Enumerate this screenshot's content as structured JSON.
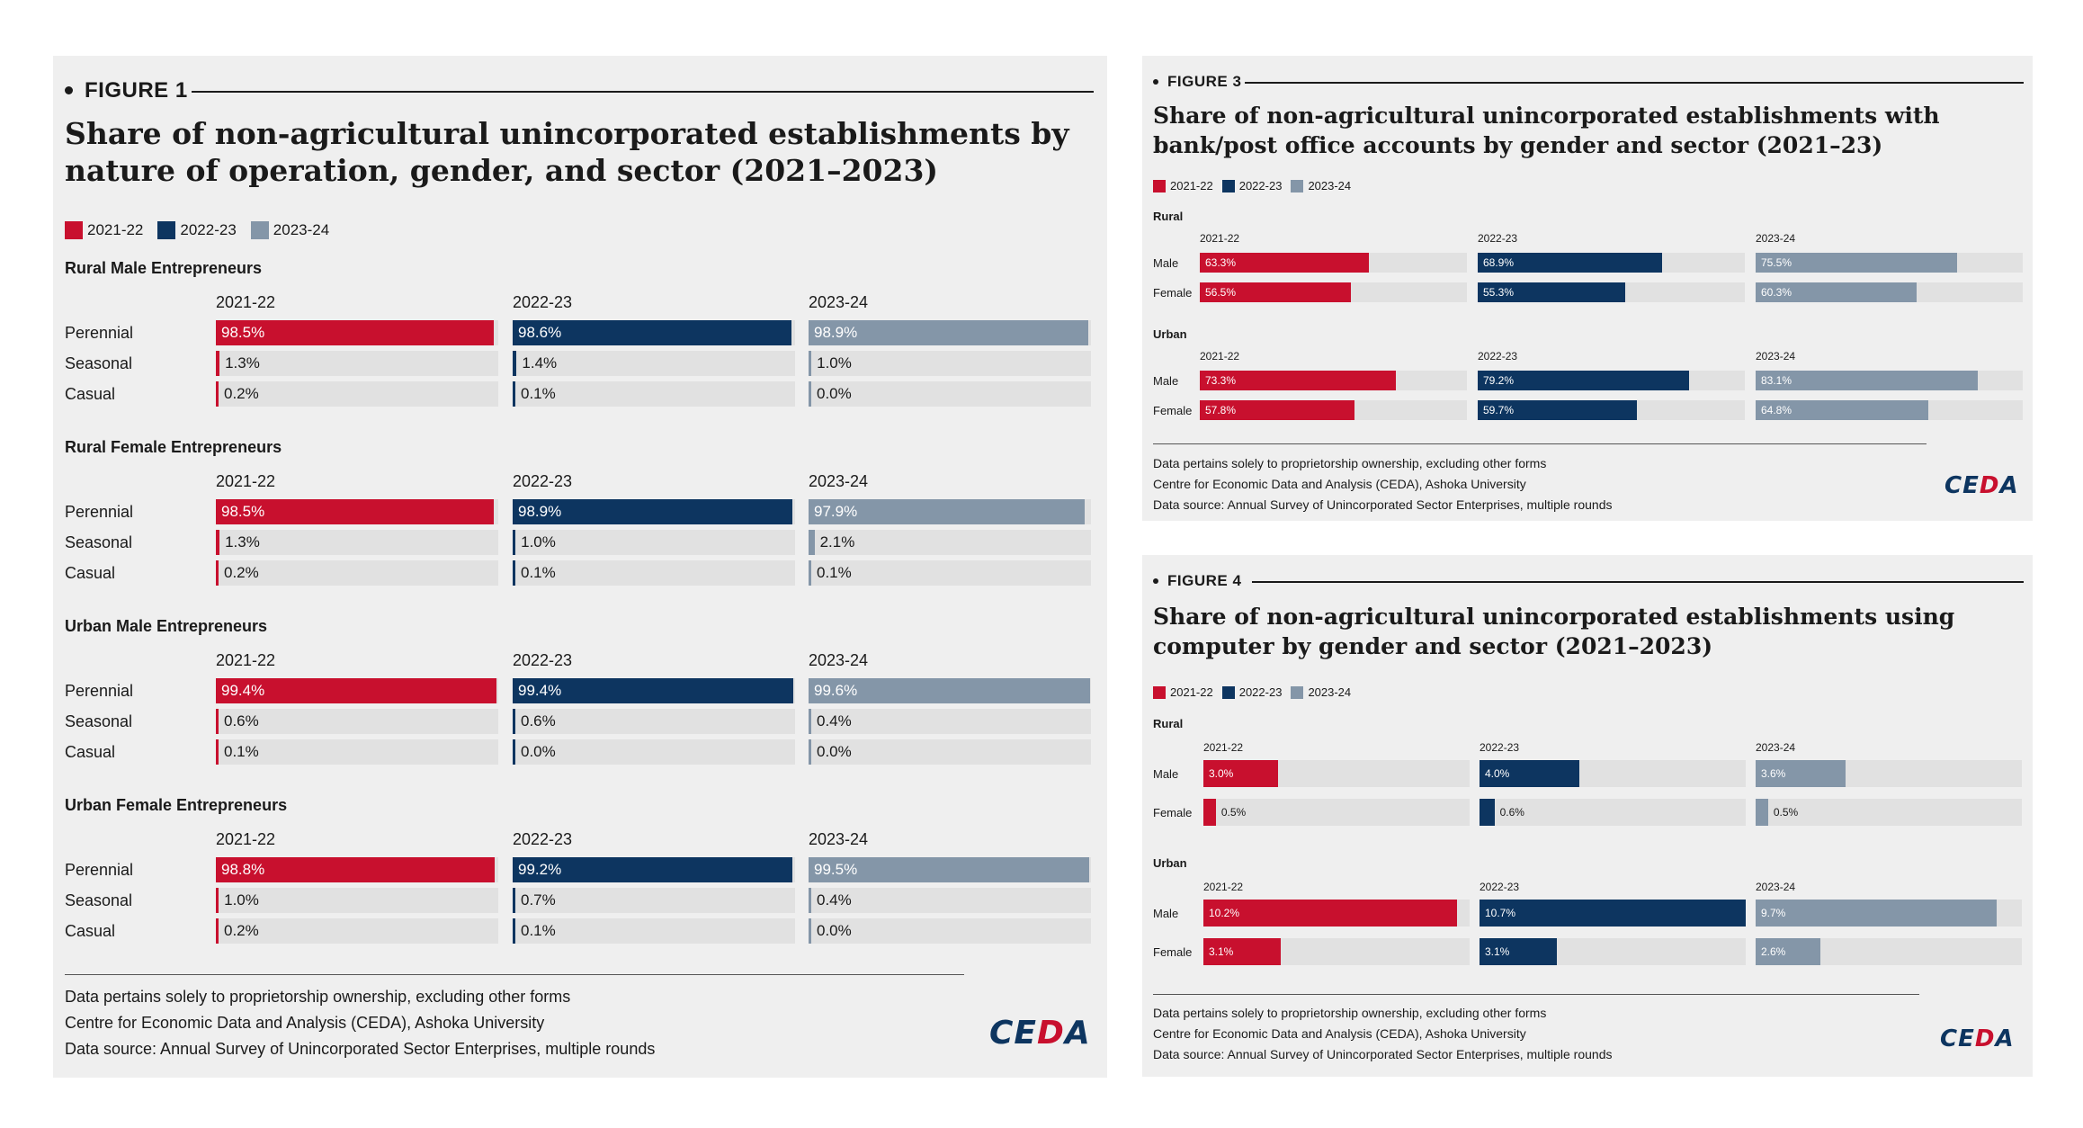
{
  "colors": {
    "y2122": "#c8102e",
    "y2223": "#0d3560",
    "y2324": "#8496a8",
    "track": "#e1e1e1"
  },
  "years": [
    "2021-22",
    "2022-23",
    "2023-24"
  ],
  "footer": {
    "line1": "Data pertains solely to proprietorship ownership, excluding other forms",
    "line2": "Centre for Economic Data and Analysis (CEDA), Ashoka University",
    "line3": "Data source: Annual Survey of Unincorporated Sector Enterprises, multiple rounds",
    "logo_left": "CE",
    "logo_accent": "D",
    "logo_right": "A"
  },
  "chart_data": [
    {
      "type": "bar",
      "tag": "FIGURE 1",
      "title": "Share of non-agricultural unincorporated establishments by nature of operation, gender, and sector (2021–2023)",
      "legend": [
        "2021-22",
        "2022-23",
        "2023-24"
      ],
      "unit": "%",
      "groups": [
        {
          "name": "Rural Male Entrepreneurs",
          "rows": [
            {
              "label": "Perennial",
              "values": [
                98.5,
                98.6,
                98.9
              ]
            },
            {
              "label": "Seasonal",
              "values": [
                1.3,
                1.4,
                1.0
              ]
            },
            {
              "label": "Casual",
              "values": [
                0.2,
                0.1,
                0.0
              ]
            }
          ]
        },
        {
          "name": "Rural Female Entrepreneurs",
          "rows": [
            {
              "label": "Perennial",
              "values": [
                98.5,
                98.9,
                97.9
              ]
            },
            {
              "label": "Seasonal",
              "values": [
                1.3,
                1.0,
                2.1
              ]
            },
            {
              "label": "Casual",
              "values": [
                0.2,
                0.1,
                0.1
              ]
            }
          ]
        },
        {
          "name": "Urban Male Entrepreneurs",
          "rows": [
            {
              "label": "Perennial",
              "values": [
                99.4,
                99.4,
                99.6
              ]
            },
            {
              "label": "Seasonal",
              "values": [
                0.6,
                0.6,
                0.4
              ]
            },
            {
              "label": "Casual",
              "values": [
                0.1,
                0.0,
                0.0
              ]
            }
          ]
        },
        {
          "name": "Urban Female Entrepreneurs",
          "rows": [
            {
              "label": "Perennial",
              "values": [
                98.8,
                99.2,
                99.5
              ]
            },
            {
              "label": "Seasonal",
              "values": [
                1.0,
                0.7,
                0.4
              ]
            },
            {
              "label": "Casual",
              "values": [
                0.2,
                0.1,
                0.0
              ]
            }
          ]
        }
      ]
    },
    {
      "type": "bar",
      "tag": "FIGURE 3",
      "title": "Share of non-agricultural unincorporated establishments with bank/post office accounts by gender and sector (2021–23)",
      "legend": [
        "2021-22",
        "2022-23",
        "2023-24"
      ],
      "unit": "%",
      "groups": [
        {
          "name": "Rural",
          "rows": [
            {
              "label": "Male",
              "values": [
                63.3,
                68.9,
                75.5
              ]
            },
            {
              "label": "Female",
              "values": [
                56.5,
                55.3,
                60.3
              ]
            }
          ]
        },
        {
          "name": "Urban",
          "rows": [
            {
              "label": "Male",
              "values": [
                73.3,
                79.2,
                83.1
              ]
            },
            {
              "label": "Female",
              "values": [
                57.8,
                59.7,
                64.8
              ]
            }
          ]
        }
      ]
    },
    {
      "type": "bar",
      "tag": "FIGURE 4",
      "title": "Share of non-agricultural unincorporated establishments using computer by gender and sector (2021–2023)",
      "legend": [
        "2021-22",
        "2022-23",
        "2023-24"
      ],
      "unit": "%",
      "groups": [
        {
          "name": "Rural",
          "rows": [
            {
              "label": "Male",
              "values": [
                3.0,
                4.0,
                3.6
              ]
            },
            {
              "label": "Female",
              "values": [
                0.5,
                0.6,
                0.5
              ]
            }
          ]
        },
        {
          "name": "Urban",
          "rows": [
            {
              "label": "Male",
              "values": [
                10.2,
                10.7,
                9.7
              ]
            },
            {
              "label": "Female",
              "values": [
                3.1,
                3.1,
                2.6
              ]
            }
          ]
        }
      ]
    }
  ]
}
